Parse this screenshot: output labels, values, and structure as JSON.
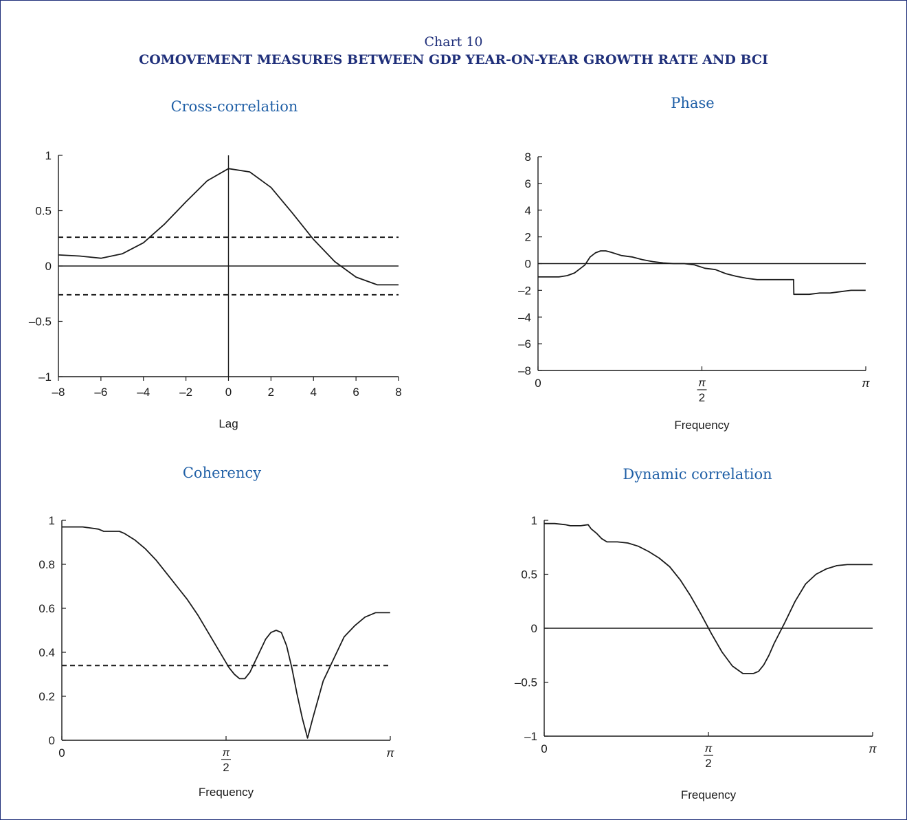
{
  "header": {
    "label": "Chart 10",
    "title": "COMOVEMENT MEASURES BETWEEN GDP YEAR-ON-YEAR GROWTH RATE AND BCI"
  },
  "colors": {
    "title": "#1f2f7a",
    "panel_title": "#1f5fa6",
    "line": "#1a1a1a"
  },
  "chart_data": [
    {
      "type": "line",
      "title": "Cross-correlation",
      "xlabel": "Lag",
      "ylabel": "",
      "xlim": [
        -8,
        8
      ],
      "ylim": [
        -1,
        1
      ],
      "xticks": [
        -8,
        -6,
        -4,
        -2,
        0,
        2,
        4,
        6,
        8
      ],
      "xtick_labels": [
        "–8",
        "–6",
        "–4",
        "–2",
        "0",
        "2",
        "4",
        "6",
        "8"
      ],
      "yticks": [
        -1,
        -0.5,
        0,
        0.5,
        1
      ],
      "ytick_labels": [
        "–1",
        "–0.5",
        "0",
        "0.5",
        "1"
      ],
      "zero_line": true,
      "vertical_axis_at": 0,
      "bands": [
        0.26,
        -0.26
      ],
      "series": [
        {
          "x": [
            -8,
            -7,
            -6,
            -5,
            -4,
            -3,
            -2,
            -1,
            0,
            1,
            2,
            3,
            4,
            5,
            6,
            7,
            8
          ],
          "values": [
            0.1,
            0.09,
            0.07,
            0.11,
            0.21,
            0.38,
            0.58,
            0.77,
            0.88,
            0.85,
            0.71,
            0.48,
            0.24,
            0.04,
            -0.1,
            -0.17,
            -0.17
          ]
        }
      ]
    },
    {
      "type": "line",
      "title": "Phase",
      "xlabel": "Frequency",
      "ylabel": "",
      "xlim": [
        0,
        3.14159
      ],
      "ylim": [
        -8,
        8
      ],
      "xticks": [
        0,
        1.5708,
        3.14159
      ],
      "xtick_labels": [
        "0",
        "π/2",
        "π"
      ],
      "yticks": [
        -8,
        -6,
        -4,
        -2,
        0,
        2,
        4,
        6,
        8
      ],
      "ytick_labels": [
        "–8",
        "–6",
        "–4",
        "–2",
        "0",
        "2",
        "4",
        "6",
        "8"
      ],
      "zero_line": true,
      "bands": [],
      "series": [
        {
          "x": [
            0,
            0.2,
            0.28,
            0.35,
            0.4,
            0.45,
            0.5,
            0.55,
            0.6,
            0.65,
            0.7,
            0.8,
            0.9,
            1.0,
            1.1,
            1.2,
            1.3,
            1.4,
            1.5,
            1.6,
            1.7,
            1.8,
            1.9,
            2.0,
            2.1,
            2.2,
            2.3,
            2.4,
            2.45,
            2.452,
            2.5,
            2.6,
            2.7,
            2.8,
            2.9,
            3.0,
            3.14
          ],
          "values": [
            -1.0,
            -1.0,
            -0.9,
            -0.7,
            -0.4,
            -0.1,
            0.5,
            0.8,
            0.95,
            0.95,
            0.85,
            0.6,
            0.5,
            0.3,
            0.15,
            0.05,
            0.0,
            0.0,
            -0.1,
            -0.35,
            -0.45,
            -0.75,
            -0.95,
            -1.1,
            -1.2,
            -1.2,
            -1.2,
            -1.2,
            -1.2,
            -2.3,
            -2.3,
            -2.3,
            -2.2,
            -2.2,
            -2.1,
            -2.0,
            -2.0
          ]
        }
      ]
    },
    {
      "type": "line",
      "title": "Coherency",
      "xlabel": "Frequency",
      "ylabel": "",
      "xlim": [
        0,
        3.14159
      ],
      "ylim": [
        0,
        1
      ],
      "xticks": [
        0,
        1.5708,
        3.14159
      ],
      "xtick_labels": [
        "0",
        "π/2",
        "π"
      ],
      "yticks": [
        0,
        0.2,
        0.4,
        0.6,
        0.8,
        1
      ],
      "ytick_labels": [
        "0",
        "0.2",
        "0.4",
        "0.6",
        "0.8",
        "1"
      ],
      "zero_line": false,
      "bands": [
        0.34
      ],
      "series": [
        {
          "x": [
            0,
            0.2,
            0.35,
            0.4,
            0.55,
            0.6,
            0.7,
            0.8,
            0.9,
            1.0,
            1.1,
            1.2,
            1.3,
            1.4,
            1.5,
            1.6,
            1.65,
            1.7,
            1.75,
            1.8,
            1.85,
            1.9,
            1.95,
            2.0,
            2.05,
            2.1,
            2.15,
            2.2,
            2.25,
            2.3,
            2.35,
            2.4,
            2.5,
            2.6,
            2.7,
            2.8,
            2.9,
            3.0,
            3.14
          ],
          "values": [
            0.97,
            0.97,
            0.96,
            0.95,
            0.95,
            0.94,
            0.91,
            0.87,
            0.82,
            0.76,
            0.7,
            0.64,
            0.57,
            0.49,
            0.41,
            0.33,
            0.3,
            0.28,
            0.28,
            0.31,
            0.36,
            0.41,
            0.46,
            0.49,
            0.5,
            0.49,
            0.43,
            0.33,
            0.21,
            0.1,
            0.01,
            0.1,
            0.27,
            0.37,
            0.47,
            0.52,
            0.56,
            0.58,
            0.58
          ]
        }
      ]
    },
    {
      "type": "line",
      "title": "Dynamic correlation",
      "xlabel": "Frequency",
      "ylabel": "",
      "xlim": [
        0,
        3.14159
      ],
      "ylim": [
        -1,
        1
      ],
      "xticks": [
        0,
        1.5708,
        3.14159
      ],
      "xtick_labels": [
        "0",
        "π/2",
        "π"
      ],
      "yticks": [
        -1,
        -0.5,
        0,
        0.5,
        1
      ],
      "ytick_labels": [
        "–1",
        "–0.5",
        "0",
        "0.5",
        "1"
      ],
      "zero_line": true,
      "bands": [],
      "series": [
        {
          "x": [
            0,
            0.1,
            0.2,
            0.25,
            0.35,
            0.42,
            0.45,
            0.5,
            0.55,
            0.6,
            0.65,
            0.7,
            0.8,
            0.9,
            1.0,
            1.1,
            1.2,
            1.3,
            1.4,
            1.5,
            1.6,
            1.7,
            1.8,
            1.9,
            2.0,
            2.05,
            2.1,
            2.15,
            2.2,
            2.3,
            2.4,
            2.5,
            2.6,
            2.7,
            2.8,
            2.9,
            3.0,
            3.14
          ],
          "values": [
            0.97,
            0.97,
            0.96,
            0.95,
            0.95,
            0.96,
            0.92,
            0.88,
            0.83,
            0.8,
            0.8,
            0.8,
            0.79,
            0.76,
            0.71,
            0.65,
            0.57,
            0.45,
            0.3,
            0.13,
            -0.05,
            -0.22,
            -0.35,
            -0.42,
            -0.42,
            -0.4,
            -0.34,
            -0.25,
            -0.14,
            0.05,
            0.25,
            0.41,
            0.5,
            0.55,
            0.58,
            0.59,
            0.59,
            0.59
          ]
        }
      ]
    }
  ]
}
